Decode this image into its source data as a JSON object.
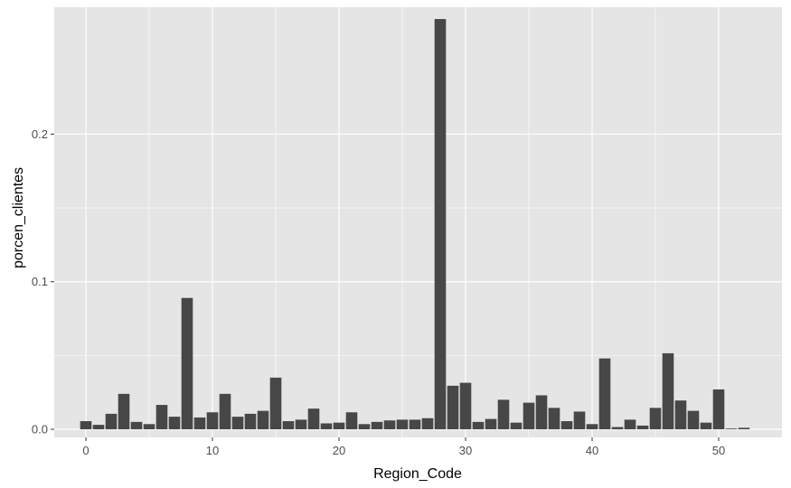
{
  "chart_data": {
    "type": "bar",
    "xlabel": "Region_Code",
    "ylabel": "porcen_clientes",
    "xlim": [
      -2.5,
      55
    ],
    "ylim": [
      -0.0055,
      0.286
    ],
    "x_ticks": [
      0,
      10,
      20,
      30,
      40,
      50
    ],
    "x_tick_labels": [
      "0",
      "10",
      "20",
      "30",
      "40",
      "50"
    ],
    "y_ticks": [
      0.0,
      0.1,
      0.2
    ],
    "y_tick_labels": [
      "0.0",
      "0.1",
      "0.2"
    ],
    "grid": true,
    "colors": {
      "panel_background": "#e5e5e5",
      "grid_line": "#ffffff",
      "bar_fill": "#474747",
      "tick_text": "#4d4d4d",
      "axis_title": "#000000"
    },
    "x": [
      0,
      1,
      2,
      3,
      4,
      5,
      6,
      7,
      8,
      9,
      10,
      11,
      12,
      13,
      14,
      15,
      16,
      17,
      18,
      19,
      20,
      21,
      22,
      23,
      24,
      25,
      26,
      27,
      28,
      29,
      30,
      31,
      32,
      33,
      34,
      35,
      36,
      37,
      38,
      39,
      40,
      41,
      42,
      43,
      44,
      45,
      46,
      47,
      48,
      49,
      50,
      51,
      52
    ],
    "values": [
      0.0055,
      0.003,
      0.0105,
      0.024,
      0.005,
      0.0035,
      0.0165,
      0.0085,
      0.089,
      0.008,
      0.0115,
      0.024,
      0.0085,
      0.0105,
      0.0125,
      0.035,
      0.0055,
      0.0065,
      0.014,
      0.004,
      0.0045,
      0.0115,
      0.0035,
      0.005,
      0.006,
      0.0065,
      0.0065,
      0.0075,
      0.278,
      0.0295,
      0.0315,
      0.005,
      0.007,
      0.02,
      0.0045,
      0.018,
      0.023,
      0.0145,
      0.0055,
      0.012,
      0.0035,
      0.048,
      0.0015,
      0.0065,
      0.0025,
      0.0145,
      0.0515,
      0.0195,
      0.0125,
      0.0045,
      0.027,
      0.0005,
      0.001
    ]
  }
}
